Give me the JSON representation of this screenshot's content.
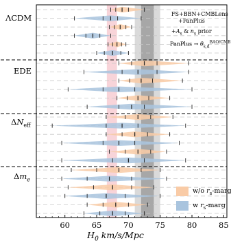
{
  "chart_data": {
    "type": "interval",
    "xlabel": "H_0 km/s/Mpc",
    "xlim": [
      55.5,
      85.5
    ],
    "x_ticks": [
      60,
      65,
      70,
      75,
      80,
      85
    ],
    "groups": [
      {
        "label": "ΛCDM",
        "rows": 6
      },
      {
        "label": "EDE",
        "rows": 6
      },
      {
        "label": "ΔN_eff",
        "rows": 6
      },
      {
        "label": "Δm_e",
        "rows": 6
      }
    ],
    "reference_bands": [
      {
        "name": "red band",
        "center": 67.4,
        "halfwidth": 0.8,
        "color": "#f6c6cc"
      },
      {
        "name": "dark grey band",
        "center": 73.0,
        "halfwidth": 1.0,
        "color": "#9e9e9e"
      },
      {
        "name": "light grey band",
        "center": 73.0,
        "halfwidth": 2.0,
        "color": "#d4d4d4"
      }
    ],
    "series": [
      {
        "name": "w/o r_s-marg",
        "color": "#f9cba6"
      },
      {
        "name": "w r_s-marg",
        "color": "#a9c4de"
      }
    ],
    "intervals": [
      {
        "group": 0,
        "row": 0,
        "series": 0,
        "median": 69.0,
        "s1": [
          68.0,
          70.0
        ],
        "s2": [
          67.2,
          72.5
        ]
      },
      {
        "group": 0,
        "row": 0,
        "series": 1,
        "median": 67.2,
        "s1": [
          66.0,
          68.3
        ],
        "s2": [
          61.5,
          72.0
        ]
      },
      {
        "group": 0,
        "row": 1,
        "series": 0,
        "median": 68.7,
        "s1": [
          67.8,
          69.6
        ],
        "s2": [
          67.0,
          70.5
        ]
      },
      {
        "group": 0,
        "row": 1,
        "series": 1,
        "median": 64.4,
        "s1": [
          63.3,
          65.5
        ],
        "s2": [
          61.5,
          67.2
        ]
      },
      {
        "group": 0,
        "row": 2,
        "series": 0,
        "median": 68.2,
        "s1": [
          67.5,
          68.9
        ],
        "s2": [
          66.8,
          69.6
        ]
      },
      {
        "group": 0,
        "row": 2,
        "series": 1,
        "median": 67.5,
        "s1": [
          66.2,
          68.8
        ],
        "s2": [
          65.0,
          70.0
        ]
      },
      {
        "group": 1,
        "row": 0,
        "series": 0,
        "median": 72.5,
        "s1": [
          70.5,
          74.5
        ],
        "s2": [
          68.5,
          79.5
        ]
      },
      {
        "group": 1,
        "row": 0,
        "series": 1,
        "median": 71.5,
        "s1": [
          69.0,
          74.5
        ],
        "s2": [
          63.0,
          79.5
        ]
      },
      {
        "group": 1,
        "row": 1,
        "series": 0,
        "median": 72.0,
        "s1": [
          70.2,
          73.8
        ],
        "s2": [
          68.5,
          78.5
        ]
      },
      {
        "group": 1,
        "row": 1,
        "series": 1,
        "median": 68.5,
        "s1": [
          66.0,
          71.0
        ],
        "s2": [
          60.5,
          80.0
        ]
      },
      {
        "group": 1,
        "row": 2,
        "series": 0,
        "median": 71.5,
        "s1": [
          69.8,
          73.2
        ],
        "s2": [
          68.2,
          76.5
        ]
      },
      {
        "group": 1,
        "row": 2,
        "series": 1,
        "median": 70.5,
        "s1": [
          68.5,
          72.5
        ],
        "s2": [
          63.5,
          80.0
        ]
      },
      {
        "group": 2,
        "row": 0,
        "series": 0,
        "median": 71.5,
        "s1": [
          69.5,
          73.5
        ],
        "s2": [
          66.5,
          77.0
        ]
      },
      {
        "group": 2,
        "row": 0,
        "series": 1,
        "median": 69.0,
        "s1": [
          66.5,
          71.5
        ],
        "s2": [
          58.0,
          79.0
        ]
      },
      {
        "group": 2,
        "row": 1,
        "series": 0,
        "median": 71.0,
        "s1": [
          69.0,
          73.0
        ],
        "s2": [
          66.5,
          76.5
        ]
      },
      {
        "group": 2,
        "row": 1,
        "series": 1,
        "median": 68.5,
        "s1": [
          66.0,
          71.0
        ],
        "s2": [
          59.5,
          78.0
        ]
      },
      {
        "group": 2,
        "row": 2,
        "series": 0,
        "median": 71.5,
        "s1": [
          69.5,
          73.5
        ],
        "s2": [
          67.0,
          76.0
        ]
      },
      {
        "group": 2,
        "row": 2,
        "series": 1,
        "median": 70.0,
        "s1": [
          67.5,
          72.5
        ],
        "s2": [
          59.5,
          79.0
        ]
      },
      {
        "group": 3,
        "row": 0,
        "series": 0,
        "median": 68.5,
        "s1": [
          65.0,
          72.0
        ],
        "s2": [
          61.0,
          75.0
        ]
      },
      {
        "group": 3,
        "row": 0,
        "series": 1,
        "median": 67.0,
        "s1": [
          63.5,
          70.5
        ],
        "s2": [
          59.5,
          76.0
        ]
      },
      {
        "group": 3,
        "row": 1,
        "series": 0,
        "median": 67.5,
        "s1": [
          64.5,
          70.5
        ],
        "s2": [
          60.5,
          74.0
        ]
      },
      {
        "group": 3,
        "row": 1,
        "series": 1,
        "median": 66.5,
        "s1": [
          63.5,
          69.5
        ],
        "s2": [
          60.0,
          75.0
        ]
      },
      {
        "group": 3,
        "row": 2,
        "series": 0,
        "median": 68.0,
        "s1": [
          66.0,
          70.0
        ],
        "s2": [
          63.5,
          73.0
        ]
      },
      {
        "group": 3,
        "row": 2,
        "series": 1,
        "median": 67.5,
        "s1": [
          65.5,
          69.5
        ],
        "s2": [
          63.0,
          72.5
        ]
      }
    ],
    "annotations": [
      {
        "id": "anno_fs",
        "text": "FS+BBN+CMBLens"
      },
      {
        "id": "anno_pp",
        "text": "+PanPlus"
      },
      {
        "id": "anno_as",
        "text": "+A_s & n_s prior"
      },
      {
        "id": "anno_theta",
        "text": "PanPlus → θ_s,d^BAO/CMB"
      }
    ],
    "legend": {
      "position": "bottom-right",
      "entries": [
        {
          "label": "w/o r_s-marg",
          "series": 0
        },
        {
          "label": "w r_s-marg",
          "series": 1
        }
      ]
    },
    "grid": true
  }
}
